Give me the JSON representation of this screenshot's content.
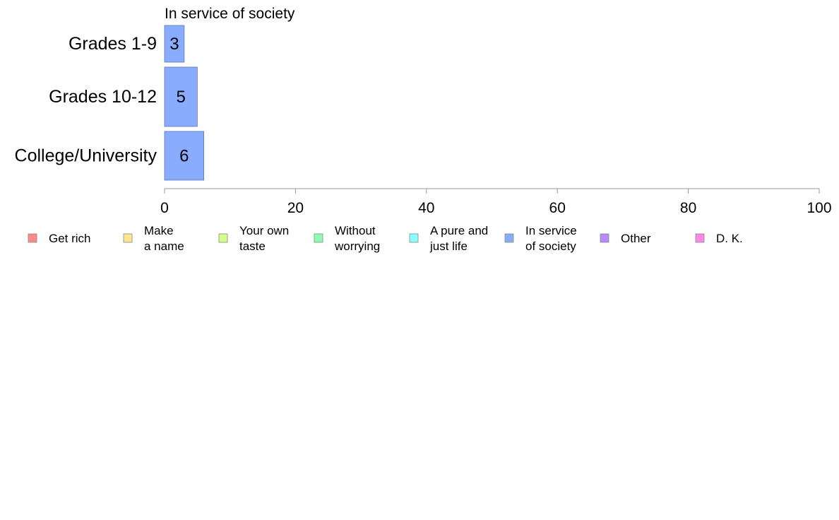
{
  "chart_data": {
    "type": "bar",
    "orientation": "horizontal",
    "title": "In service of society",
    "categories": [
      "Grades 1-9",
      "Grades 10-12",
      "College/University"
    ],
    "series": [
      {
        "name": "In service of society",
        "values": [
          3,
          5,
          6
        ],
        "color": "#8aacff"
      }
    ],
    "xlim": [
      0,
      100
    ],
    "xticks": [
      0,
      20,
      40,
      60,
      80,
      100
    ],
    "grid": false,
    "legend_position": "bottom",
    "legend": [
      {
        "lines": [
          "Get rich"
        ],
        "color": "#ff8a8a"
      },
      {
        "lines": [
          "Make",
          "a name"
        ],
        "color": "#ffe68a"
      },
      {
        "lines": [
          "Your own",
          "taste"
        ],
        "color": "#d2ff8a"
      },
      {
        "lines": [
          "Without",
          "worrying"
        ],
        "color": "#8affb0"
      },
      {
        "lines": [
          "A pure and",
          "just life"
        ],
        "color": "#8affff"
      },
      {
        "lines": [
          "In service",
          "of society"
        ],
        "color": "#8aacff"
      },
      {
        "lines": [
          "Other"
        ],
        "color": "#b88aff"
      },
      {
        "lines": [
          "D. K."
        ],
        "color": "#ff8ae6"
      }
    ]
  }
}
